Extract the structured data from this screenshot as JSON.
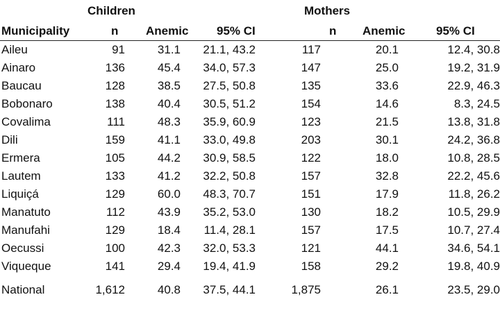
{
  "groups": {
    "children": "Children",
    "mothers": "Mothers"
  },
  "headers": {
    "municipality": "Municipality",
    "children_n": "n",
    "children_anemic": "Anemic",
    "children_ci": "95% CI",
    "mothers_n": "n",
    "mothers_anemic": "Anemic",
    "mothers_ci": "95% CI"
  },
  "rows": [
    {
      "municipality": "Aileu",
      "c_n": "91",
      "c_anemic": "31.1",
      "c_ci": "21.1, 43.2",
      "m_n": "117",
      "m_anemic": "20.1",
      "m_ci": "12.4, 30.8"
    },
    {
      "municipality": "Ainaro",
      "c_n": "136",
      "c_anemic": "45.4",
      "c_ci": "34.0, 57.3",
      "m_n": "147",
      "m_anemic": "25.0",
      "m_ci": "19.2, 31.9"
    },
    {
      "municipality": "Baucau",
      "c_n": "128",
      "c_anemic": "38.5",
      "c_ci": "27.5, 50.8",
      "m_n": "135",
      "m_anemic": "33.6",
      "m_ci": "22.9, 46.3"
    },
    {
      "municipality": "Bobonaro",
      "c_n": "138",
      "c_anemic": "40.4",
      "c_ci": "30.5, 51.2",
      "m_n": "154",
      "m_anemic": "14.6",
      "m_ci": "8.3, 24.5"
    },
    {
      "municipality": "Covalima",
      "c_n": "111",
      "c_anemic": "48.3",
      "c_ci": "35.9, 60.9",
      "m_n": "123",
      "m_anemic": "21.5",
      "m_ci": "13.8, 31.8"
    },
    {
      "municipality": "Dili",
      "c_n": "159",
      "c_anemic": "41.1",
      "c_ci": "33.0, 49.8",
      "m_n": "203",
      "m_anemic": "30.1",
      "m_ci": "24.2, 36.8"
    },
    {
      "municipality": "Ermera",
      "c_n": "105",
      "c_anemic": "44.2",
      "c_ci": "30.9, 58.5",
      "m_n": "122",
      "m_anemic": "18.0",
      "m_ci": "10.8, 28.5"
    },
    {
      "municipality": "Lautem",
      "c_n": "133",
      "c_anemic": "41.2",
      "c_ci": "32.2, 50.8",
      "m_n": "157",
      "m_anemic": "32.8",
      "m_ci": "22.2, 45.6"
    },
    {
      "municipality": "Liquiçá",
      "c_n": "129",
      "c_anemic": "60.0",
      "c_ci": "48.3, 70.7",
      "m_n": "151",
      "m_anemic": "17.9",
      "m_ci": "11.8, 26.2"
    },
    {
      "municipality": "Manatuto",
      "c_n": "112",
      "c_anemic": "43.9",
      "c_ci": "35.2, 53.0",
      "m_n": "130",
      "m_anemic": "18.2",
      "m_ci": "10.5, 29.9"
    },
    {
      "municipality": "Manufahi",
      "c_n": "129",
      "c_anemic": "18.4",
      "c_ci": "11.4, 28.1",
      "m_n": "157",
      "m_anemic": "17.5",
      "m_ci": "10.7, 27.4"
    },
    {
      "municipality": "Oecussi",
      "c_n": "100",
      "c_anemic": "42.3",
      "c_ci": "32.0, 53.3",
      "m_n": "121",
      "m_anemic": "44.1",
      "m_ci": "34.6, 54.1"
    },
    {
      "municipality": "Viqueque",
      "c_n": "141",
      "c_anemic": "29.4",
      "c_ci": "19.4, 41.9",
      "m_n": "158",
      "m_anemic": "29.2",
      "m_ci": "19.8, 40.9"
    }
  ],
  "national": {
    "municipality": "National",
    "c_n": "1,612",
    "c_anemic": "40.8",
    "c_ci": "37.5, 44.1",
    "m_n": "1,875",
    "m_anemic": "26.1",
    "m_ci": "23.5, 29.0"
  }
}
